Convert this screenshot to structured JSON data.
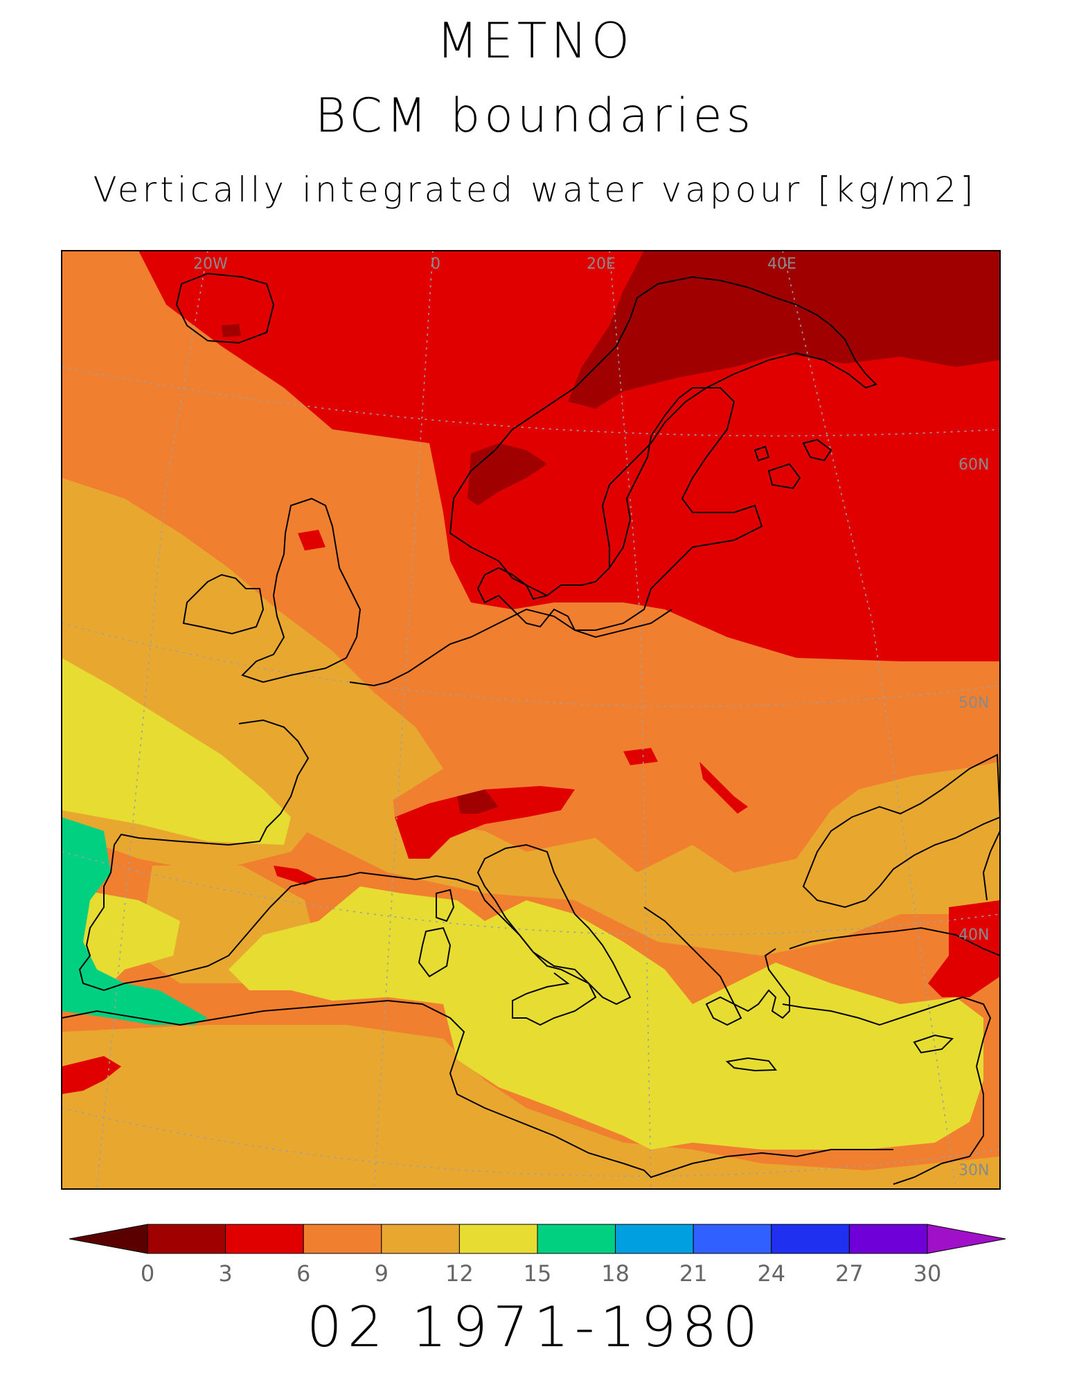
{
  "titles": {
    "model": "METNO",
    "experiment": "BCM boundaries",
    "variable": "Vertically integrated water vapour [kg/m2]"
  },
  "period_label": "02 1971-1980",
  "grid_labels": {
    "lon_20w": "20W",
    "lon_0": "0",
    "lon_20e": "20E",
    "lon_40e": "40E",
    "lat_60n": "60N",
    "lat_50n": "50N",
    "lat_40n": "40N",
    "lat_30n": "30N"
  },
  "colorbar": {
    "ticks": [
      "0",
      "3",
      "6",
      "9",
      "12",
      "15",
      "18",
      "21",
      "24",
      "27",
      "30"
    ],
    "colors": [
      "#5a0000",
      "#a00000",
      "#e00000",
      "#f08030",
      "#e8a830",
      "#e6dc32",
      "#00d080",
      "#00a0e0",
      "#3060ff",
      "#2030f0",
      "#7000d8",
      "#a010c8"
    ]
  },
  "palette": {
    "lt3": "#a00000",
    "3to6": "#e00000",
    "6to9": "#f08030",
    "9to12": "#e8a830",
    "12to15": "#e6dc32",
    "15to18": "#00d080"
  }
}
